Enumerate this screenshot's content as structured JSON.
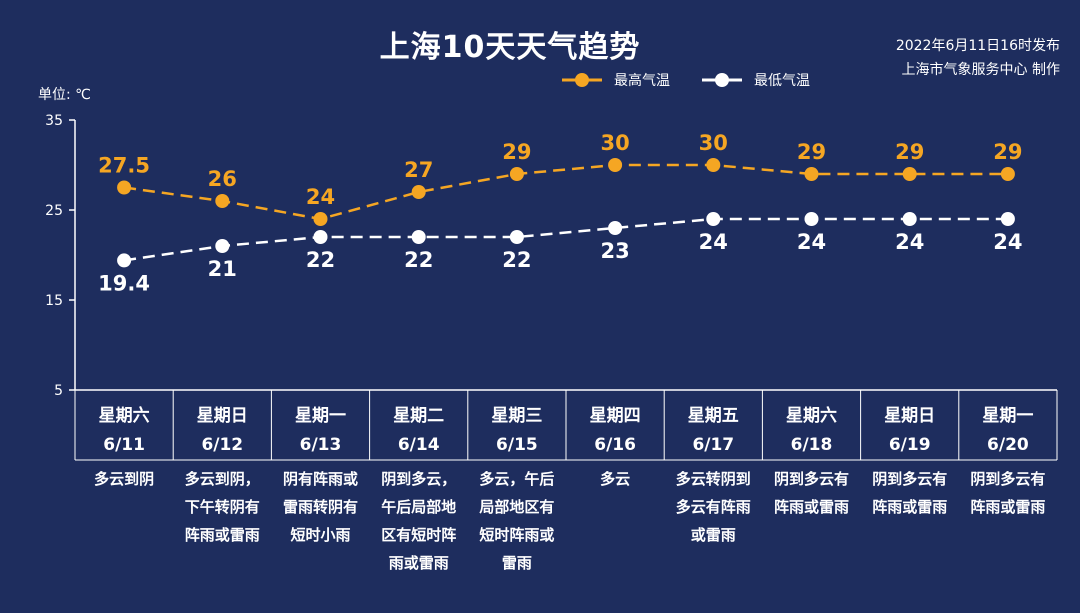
{
  "title": "上海10天天气趋势",
  "publish_time": "2022年6月11日16时发布",
  "publisher": "上海市气象服务中心 制作",
  "unit": "单位: ℃",
  "colors": {
    "high": "#f5a623",
    "low": "#ffffff",
    "background": "#1e2d5e"
  },
  "chart_data": {
    "type": "line",
    "ylim": [
      5,
      35
    ],
    "yticks": [
      "35",
      "25",
      "15",
      "5"
    ],
    "categories": [
      {
        "weekday": "星期六",
        "date": "6/11",
        "weather": [
          "多云到阴"
        ]
      },
      {
        "weekday": "星期日",
        "date": "6/12",
        "weather": [
          "多云到阴，",
          "下午转阴有",
          "阵雨或雷雨"
        ]
      },
      {
        "weekday": "星期一",
        "date": "6/13",
        "weather": [
          "阴有阵雨或",
          "雷雨转阴有",
          "短时小雨"
        ]
      },
      {
        "weekday": "星期二",
        "date": "6/14",
        "weather": [
          "阴到多云，",
          "午后局部地",
          "区有短时阵",
          "雨或雷雨"
        ]
      },
      {
        "weekday": "星期三",
        "date": "6/15",
        "weather": [
          "多云，午后",
          "局部地区有",
          "短时阵雨或",
          "雷雨"
        ]
      },
      {
        "weekday": "星期四",
        "date": "6/16",
        "weather": [
          "多云"
        ]
      },
      {
        "weekday": "星期五",
        "date": "6/17",
        "weather": [
          "多云转阴到",
          "多云有阵雨",
          "或雷雨"
        ]
      },
      {
        "weekday": "星期六",
        "date": "6/18",
        "weather": [
          "阴到多云有",
          "阵雨或雷雨"
        ]
      },
      {
        "weekday": "星期日",
        "date": "6/19",
        "weather": [
          "阴到多云有",
          "阵雨或雷雨"
        ]
      },
      {
        "weekday": "星期一",
        "date": "6/20",
        "weather": [
          "阴到多云有",
          "阵雨或雷雨"
        ]
      }
    ],
    "series": [
      {
        "name": "最高气温",
        "values": [
          27.5,
          26,
          24,
          27,
          29,
          30,
          30,
          29,
          29,
          29
        ],
        "labels": [
          "27.5",
          "26",
          "24",
          "27",
          "29",
          "30",
          "30",
          "29",
          "29",
          "29"
        ]
      },
      {
        "name": "最低气温",
        "values": [
          19.4,
          21,
          22,
          22,
          22,
          23,
          24,
          24,
          24,
          24
        ],
        "labels": [
          "19.4",
          "21",
          "22",
          "22",
          "22",
          "23",
          "24",
          "24",
          "24",
          "24"
        ]
      }
    ]
  }
}
